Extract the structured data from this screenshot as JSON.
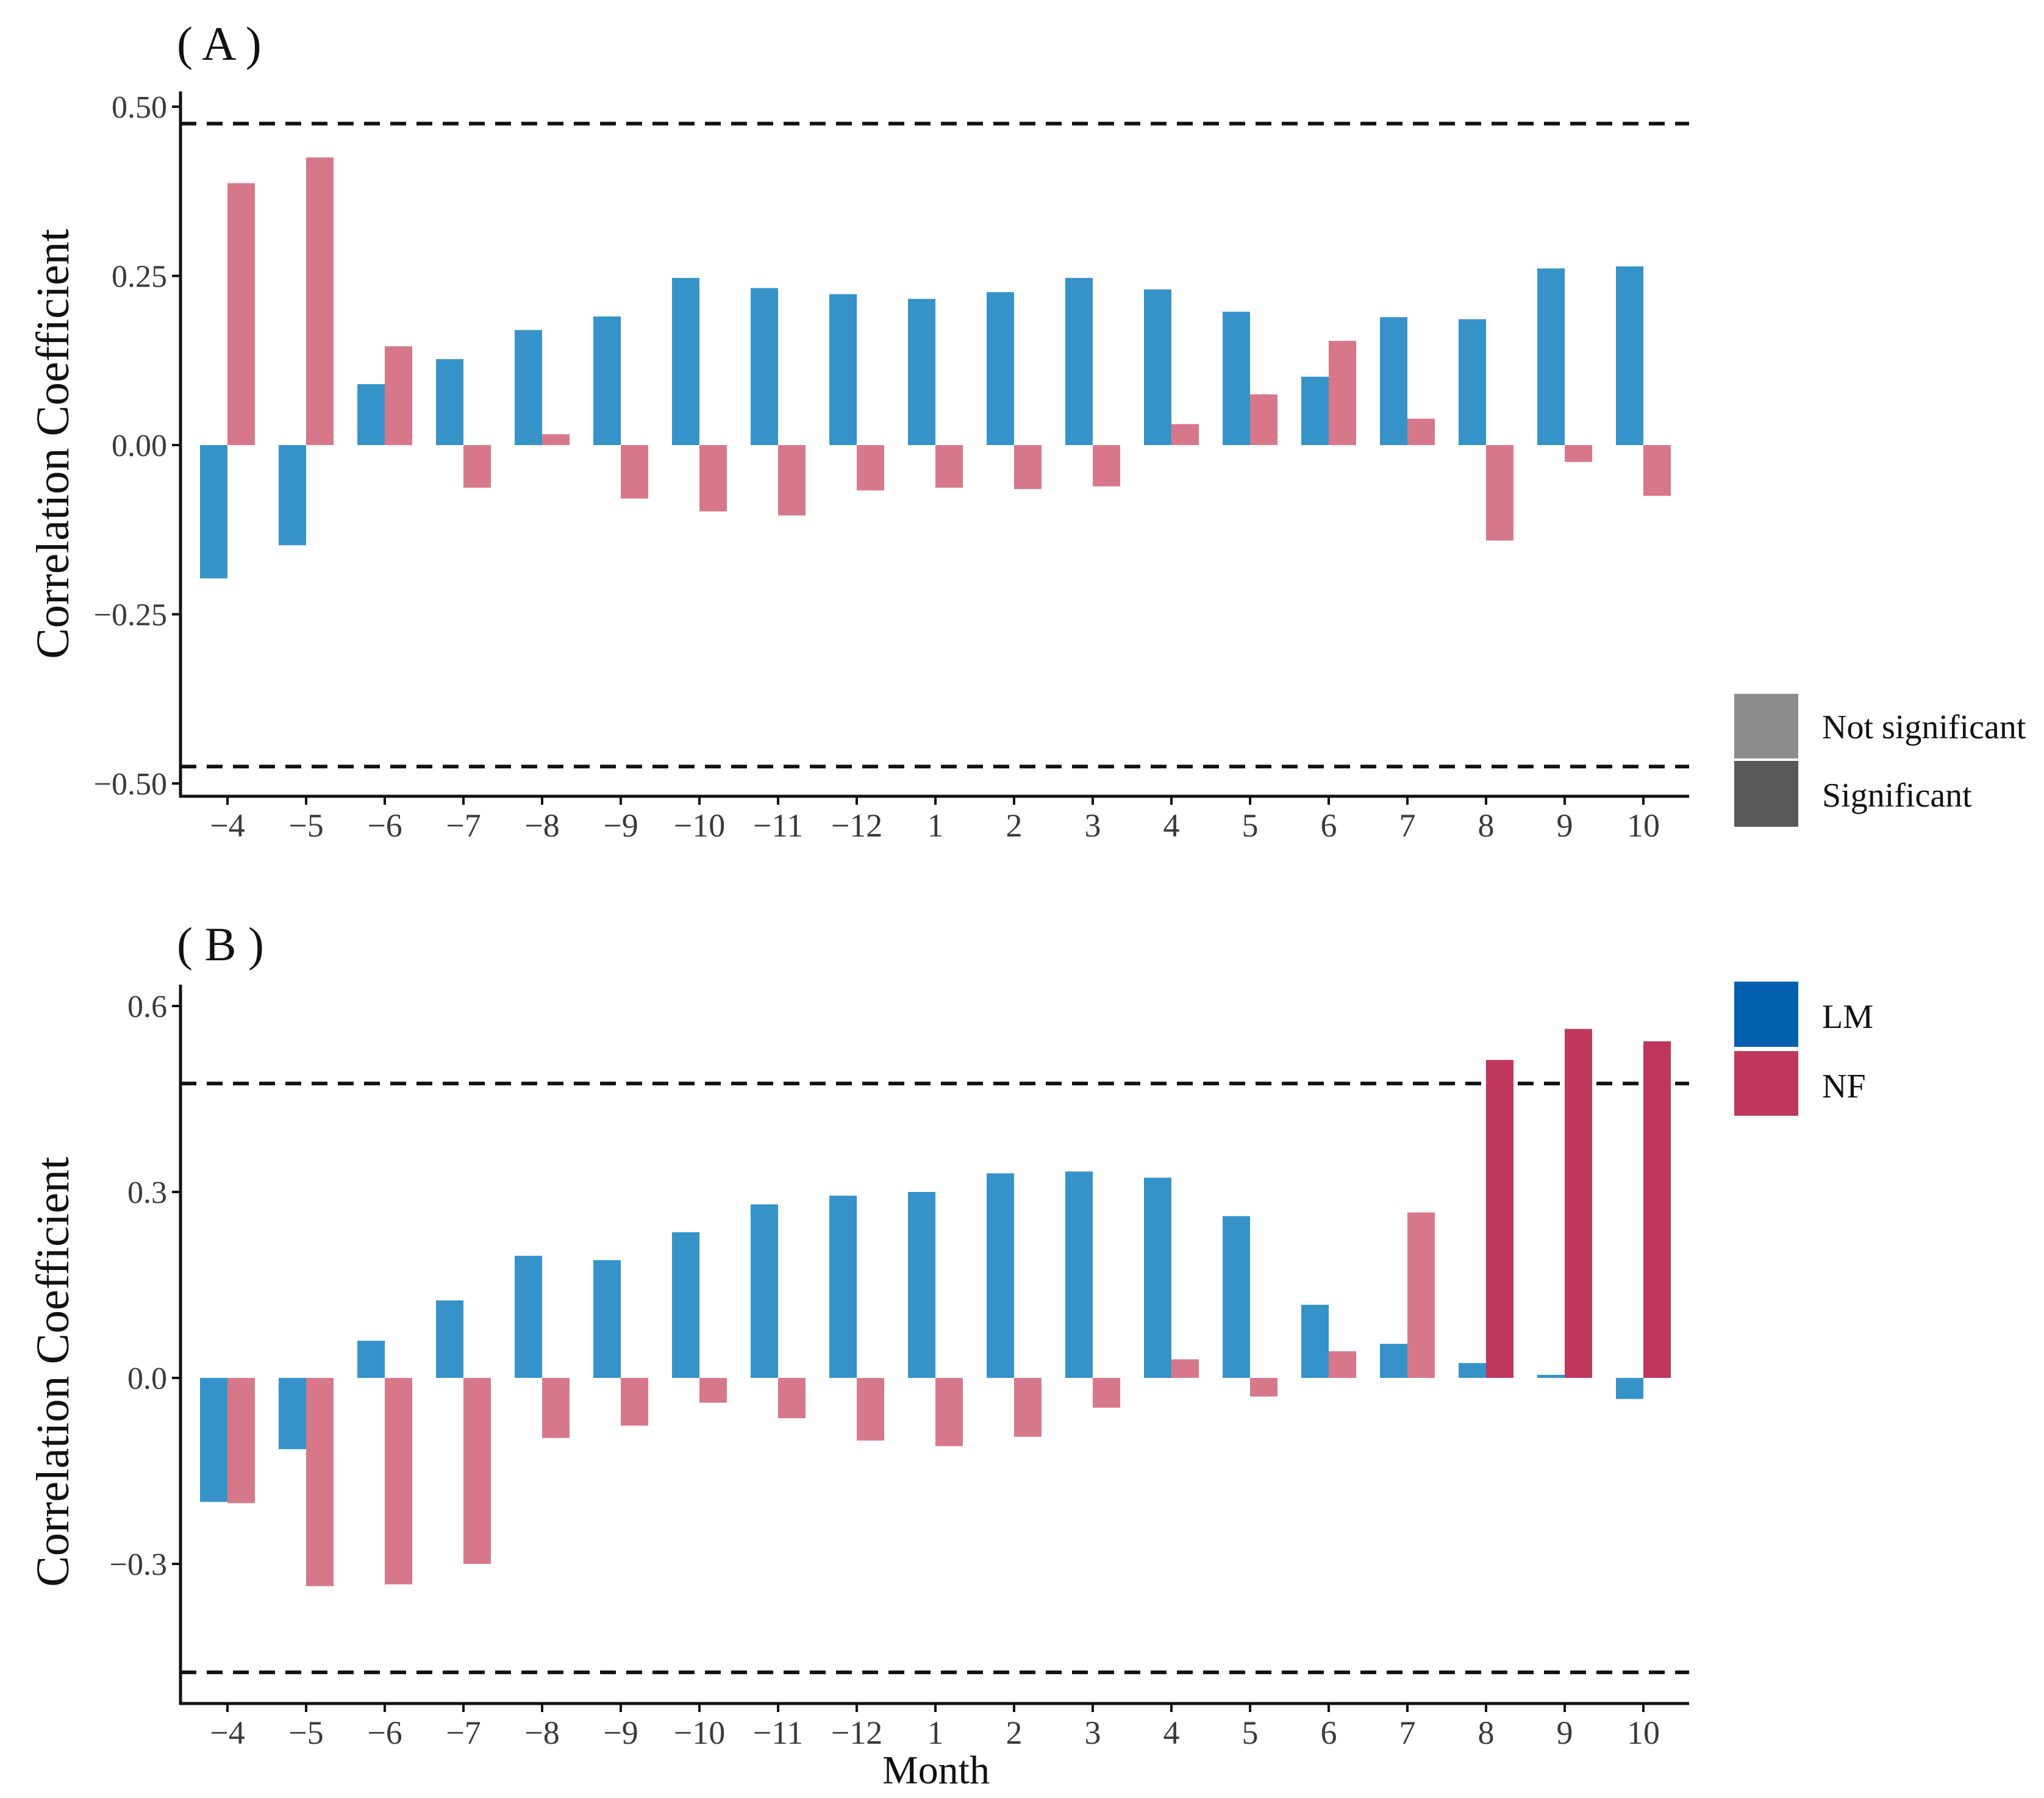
{
  "colors": {
    "lm_not_significant": "#3593C9",
    "nf_not_significant": "#D7788A",
    "lm_significant": "#0260AF",
    "nf_significant": "#BF375B",
    "legend_not_significant": "#8C8C8C",
    "legend_significant": "#595959",
    "threshold_line": "#111111",
    "axis": "#111111",
    "text": "#3a3a3a"
  },
  "legend": {
    "significance": [
      {
        "label": "Not significant",
        "color": "#8C8C8C"
      },
      {
        "label": "Significant",
        "color": "#595959"
      }
    ],
    "series": [
      {
        "label": "LM",
        "color": "#0260AF"
      },
      {
        "label": "NF",
        "color": "#BF375B"
      }
    ]
  },
  "chart_data": [
    {
      "panel": "(A)",
      "panel_label": "( A )",
      "type": "bar",
      "ylabel": "Correlation Coefficient",
      "xlabel": "",
      "ylim": [
        -0.52,
        0.52
      ],
      "yticks": [
        -0.5,
        -0.25,
        0.0,
        0.25,
        0.5
      ],
      "ytick_labels": [
        "−0.50",
        "−0.25",
        "0.00",
        "0.25",
        "0.50"
      ],
      "thresholds": [
        0.475,
        -0.475
      ],
      "categories": [
        "−4",
        "−5",
        "−6",
        "−7",
        "−8",
        "−9",
        "−10",
        "−11",
        "−12",
        "1",
        "2",
        "3",
        "4",
        "5",
        "6",
        "7",
        "8",
        "9",
        "10"
      ],
      "series": [
        {
          "name": "LM",
          "values": [
            -0.197,
            -0.148,
            0.09,
            0.127,
            0.17,
            0.19,
            0.247,
            0.232,
            0.223,
            0.216,
            0.226,
            0.247,
            0.23,
            0.197,
            0.101,
            0.189,
            0.186,
            0.261,
            0.264
          ],
          "significant": [
            false,
            false,
            false,
            false,
            false,
            false,
            false,
            false,
            false,
            false,
            false,
            false,
            false,
            false,
            false,
            false,
            false,
            false,
            false
          ]
        },
        {
          "name": "NF",
          "values": [
            0.387,
            0.425,
            0.146,
            -0.063,
            0.016,
            -0.079,
            -0.098,
            -0.104,
            -0.067,
            -0.063,
            -0.065,
            -0.061,
            0.031,
            0.075,
            0.154,
            0.039,
            -0.141,
            -0.025,
            -0.075
          ],
          "significant": [
            false,
            false,
            false,
            false,
            false,
            false,
            false,
            false,
            false,
            false,
            false,
            false,
            false,
            false,
            false,
            false,
            false,
            false,
            false
          ]
        }
      ]
    },
    {
      "panel": "(B)",
      "panel_label": "( B )",
      "type": "bar",
      "ylabel": "Correlation Coefficient",
      "xlabel": "Month",
      "ylim": [
        -0.52,
        0.62
      ],
      "yticks": [
        -0.3,
        0.0,
        0.3,
        0.6
      ],
      "ytick_labels": [
        "−0.3",
        "0.0",
        "0.3",
        "0.6"
      ],
      "thresholds": [
        0.475,
        -0.475
      ],
      "categories": [
        "−4",
        "−5",
        "−6",
        "−7",
        "−8",
        "−9",
        "−10",
        "−11",
        "−12",
        "1",
        "2",
        "3",
        "4",
        "5",
        "6",
        "7",
        "8",
        "9",
        "10"
      ],
      "series": [
        {
          "name": "LM",
          "values": [
            -0.2,
            -0.115,
            0.06,
            0.125,
            0.197,
            0.19,
            0.235,
            0.28,
            0.294,
            0.3,
            0.33,
            0.333,
            0.323,
            0.261,
            0.118,
            0.055,
            0.024,
            0.005,
            -0.034
          ],
          "significant": [
            false,
            false,
            false,
            false,
            false,
            false,
            false,
            false,
            false,
            false,
            false,
            false,
            false,
            false,
            false,
            false,
            false,
            false,
            false
          ]
        },
        {
          "name": "NF",
          "values": [
            -0.202,
            -0.336,
            -0.333,
            -0.3,
            -0.097,
            -0.077,
            -0.04,
            -0.065,
            -0.101,
            -0.11,
            -0.095,
            -0.048,
            0.03,
            -0.03,
            0.043,
            0.267,
            0.513,
            0.563,
            0.543
          ],
          "significant": [
            false,
            false,
            false,
            false,
            false,
            false,
            false,
            false,
            false,
            false,
            false,
            false,
            false,
            false,
            false,
            false,
            true,
            true,
            true
          ]
        }
      ]
    }
  ]
}
